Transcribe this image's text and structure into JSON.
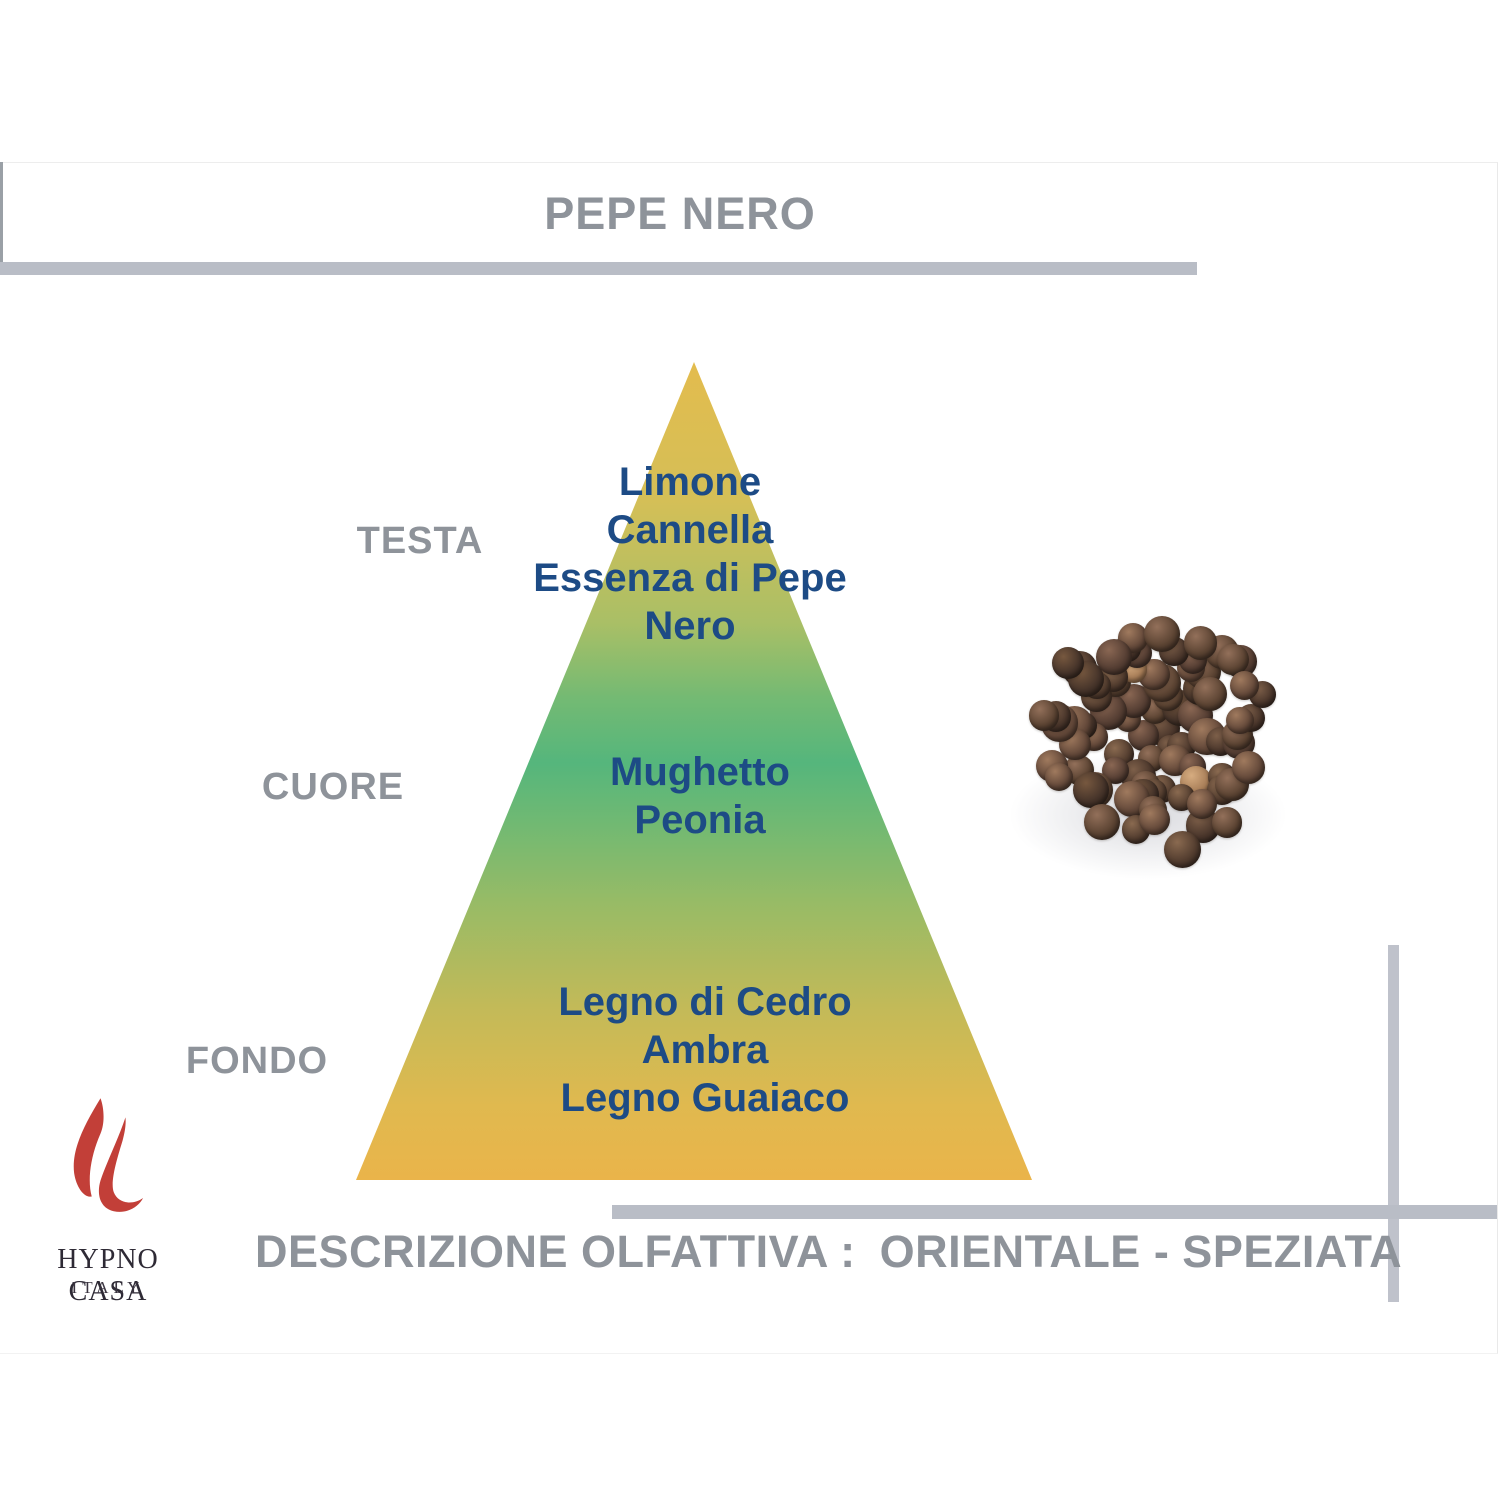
{
  "header": {
    "title": "PEPE NERO"
  },
  "pyramid": {
    "levels": [
      {
        "id": "testa",
        "label": "TESTA",
        "notes": [
          "Limone",
          "Cannella",
          "Essenza di Pepe Nero"
        ]
      },
      {
        "id": "cuore",
        "label": "CUORE",
        "notes": [
          "Mughetto",
          "Peonia"
        ]
      },
      {
        "id": "fondo",
        "label": "FONDO",
        "notes": [
          "Legno di Cedro",
          "Ambra",
          "Legno Guaiaco"
        ]
      }
    ],
    "gradient": {
      "apex_gold": "#e3bc4e",
      "upper_olive": "#d4bf57",
      "heart_green": "#55b67c",
      "lower_olive": "#c3ba58",
      "base_amber": "#eab44a"
    }
  },
  "description": {
    "label": "DESCRIZIONE OLFATTIVA :",
    "value": "ORIENTALE - SPEZIATA"
  },
  "photo": {
    "name": "black-peppercorns",
    "alt": "cluster of dried black peppercorns"
  },
  "logo": {
    "brand": "HYPNO CASA",
    "country": "ITALY",
    "flame_color": "#c23f38"
  },
  "colors": {
    "label_gray": "#8e939a",
    "note_navy": "#1d4b85",
    "rule_gray": "#b9bdc6"
  }
}
